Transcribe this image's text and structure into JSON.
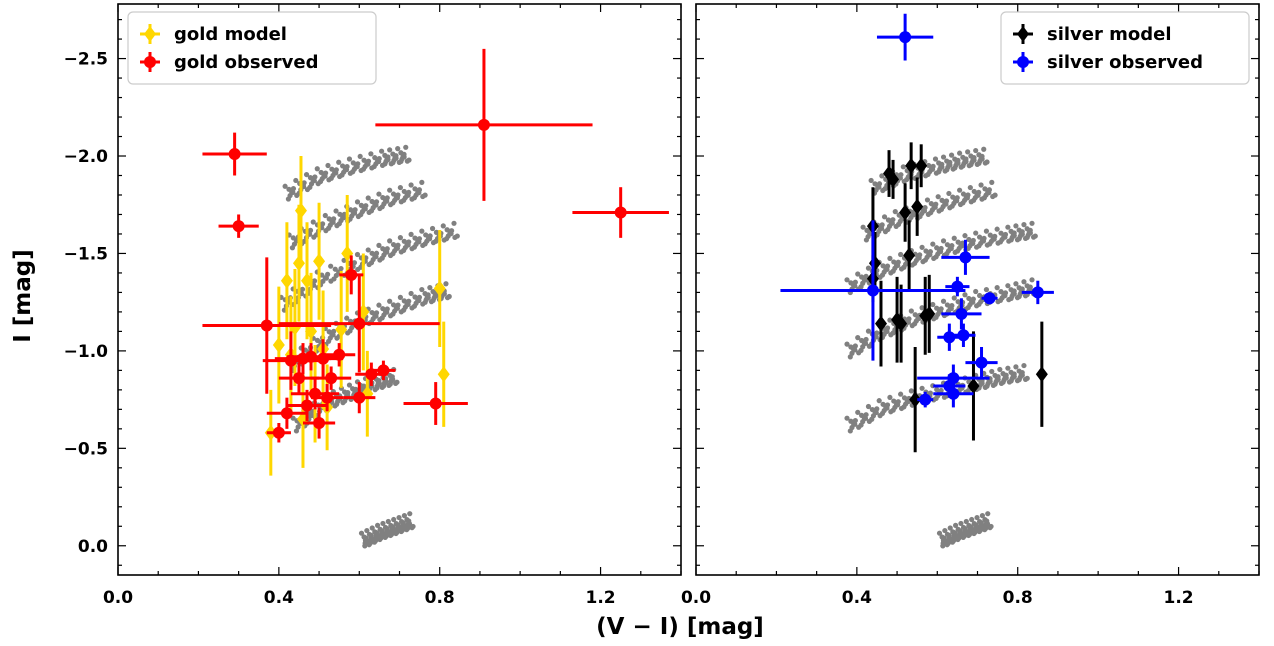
{
  "figure": {
    "xlabel": "(V − I) [mag]",
    "ylabel": "I [mag]"
  },
  "chart_data": [
    {
      "type": "scatter",
      "panel": "left",
      "xlim": [
        0.0,
        1.4
      ],
      "ylim": [
        0.15,
        -2.78
      ],
      "x_axis_inverted": false,
      "y_axis_inverted": true,
      "x_ticks": [
        0.0,
        0.4,
        0.8,
        1.2
      ],
      "x_tick_labels": [
        "0.0",
        "0.4",
        "0.8",
        "1.2"
      ],
      "y_ticks": [
        0.0,
        -0.5,
        -1.0,
        -1.5,
        -2.0,
        -2.5
      ],
      "y_tick_labels": [
        "0.0",
        "−0.5",
        "−1.0",
        "−1.5",
        "−2.0",
        "−2.5"
      ],
      "grid": false,
      "legend_position": "top-left",
      "background_bands": {
        "color": "#808080",
        "bands": [
          {
            "x": [
              0.44,
              0.52,
              0.58,
              0.64,
              0.69
            ],
            "y": [
              -0.62,
              -0.74,
              -0.79,
              -0.84,
              -0.87
            ]
          },
          {
            "x": [
              0.43,
              0.52,
              0.6,
              0.68,
              0.76,
              0.82
            ],
            "y": [
              -0.93,
              -1.08,
              -1.16,
              -1.22,
              -1.28,
              -1.31
            ]
          },
          {
            "x": [
              0.41,
              0.5,
              0.6,
              0.68,
              0.76,
              0.84
            ],
            "y": [
              -1.24,
              -1.37,
              -1.46,
              -1.53,
              -1.58,
              -1.62
            ]
          },
          {
            "x": [
              0.43,
              0.52,
              0.6,
              0.68,
              0.76
            ],
            "y": [
              -1.56,
              -1.66,
              -1.73,
              -1.79,
              -1.83
            ]
          },
          {
            "x": [
              0.42,
              0.5,
              0.58,
              0.66,
              0.72
            ],
            "y": [
              -1.81,
              -1.9,
              -1.95,
              -1.99,
              -2.01
            ]
          },
          {
            "x": [
              0.61,
              0.65,
              0.69,
              0.73
            ],
            "y": [
              -0.03,
              -0.07,
              -0.1,
              -0.13
            ]
          }
        ]
      },
      "series": [
        {
          "name": "gold model",
          "color": "#FFD700",
          "marker": "diamond",
          "points": [
            {
              "x": 0.38,
              "y": -0.58,
              "xerr": 0.0,
              "yerr": 0.22
            },
            {
              "x": 0.4,
              "y": -1.03,
              "xerr": 0.01,
              "yerr": 0.3
            },
            {
              "x": 0.42,
              "y": -1.36,
              "xerr": 0.01,
              "yerr": 0.3
            },
            {
              "x": 0.43,
              "y": -0.98,
              "xerr": 0.01,
              "yerr": 0.3
            },
            {
              "x": 0.44,
              "y": -1.12,
              "xerr": 0.01,
              "yerr": 0.3
            },
            {
              "x": 0.45,
              "y": -1.45,
              "xerr": 0.01,
              "yerr": 0.3
            },
            {
              "x": 0.455,
              "y": -1.72,
              "xerr": 0.01,
              "yerr": 0.28
            },
            {
              "x": 0.46,
              "y": -0.65,
              "xerr": 0.01,
              "yerr": 0.25
            },
            {
              "x": 0.47,
              "y": -1.36,
              "xerr": 0.01,
              "yerr": 0.3
            },
            {
              "x": 0.48,
              "y": -1.1,
              "xerr": 0.01,
              "yerr": 0.3
            },
            {
              "x": 0.49,
              "y": -0.78,
              "xerr": 0.01,
              "yerr": 0.25
            },
            {
              "x": 0.5,
              "y": -1.46,
              "xerr": 0.01,
              "yerr": 0.3
            },
            {
              "x": 0.51,
              "y": -1.01,
              "xerr": 0.01,
              "yerr": 0.3
            },
            {
              "x": 0.52,
              "y": -0.71,
              "xerr": 0.01,
              "yerr": 0.22
            },
            {
              "x": 0.555,
              "y": -1.11,
              "xerr": 0.01,
              "yerr": 0.3
            },
            {
              "x": 0.57,
              "y": -1.5,
              "xerr": 0.01,
              "yerr": 0.3
            },
            {
              "x": 0.61,
              "y": -1.2,
              "xerr": 0.01,
              "yerr": 0.3
            },
            {
              "x": 0.62,
              "y": -0.78,
              "xerr": 0.01,
              "yerr": 0.22
            },
            {
              "x": 0.8,
              "y": -1.32,
              "xerr": 0.01,
              "yerr": 0.3
            },
            {
              "x": 0.81,
              "y": -0.88,
              "xerr": 0.01,
              "yerr": 0.27
            }
          ]
        },
        {
          "name": "gold observed",
          "color": "#FF0000",
          "marker": "circle",
          "points": [
            {
              "x": 0.29,
              "y": -2.01,
              "xerr": 0.08,
              "yerr": 0.11
            },
            {
              "x": 0.3,
              "y": -1.64,
              "xerr": 0.05,
              "yerr": 0.06
            },
            {
              "x": 0.37,
              "y": -1.13,
              "xerr": 0.16,
              "yerr": 0.35
            },
            {
              "x": 0.4,
              "y": -0.58,
              "xerr": 0.03,
              "yerr": 0.05
            },
            {
              "x": 0.42,
              "y": -0.68,
              "xerr": 0.05,
              "yerr": 0.08
            },
            {
              "x": 0.43,
              "y": -0.95,
              "xerr": 0.07,
              "yerr": 0.15
            },
            {
              "x": 0.45,
              "y": -0.86,
              "xerr": 0.05,
              "yerr": 0.08
            },
            {
              "x": 0.46,
              "y": -0.96,
              "xerr": 0.07,
              "yerr": 0.08
            },
            {
              "x": 0.47,
              "y": -0.72,
              "xerr": 0.05,
              "yerr": 0.08
            },
            {
              "x": 0.48,
              "y": -0.97,
              "xerr": 0.06,
              "yerr": 0.07
            },
            {
              "x": 0.49,
              "y": -0.78,
              "xerr": 0.06,
              "yerr": 0.08
            },
            {
              "x": 0.5,
              "y": -0.63,
              "xerr": 0.04,
              "yerr": 0.08
            },
            {
              "x": 0.51,
              "y": -0.96,
              "xerr": 0.05,
              "yerr": 0.1
            },
            {
              "x": 0.52,
              "y": -0.76,
              "xerr": 0.04,
              "yerr": 0.07
            },
            {
              "x": 0.53,
              "y": -0.86,
              "xerr": 0.05,
              "yerr": 0.06
            },
            {
              "x": 0.55,
              "y": -0.98,
              "xerr": 0.04,
              "yerr": 0.06
            },
            {
              "x": 0.58,
              "y": -1.39,
              "xerr": 0.03,
              "yerr": 0.1
            },
            {
              "x": 0.6,
              "y": -1.14,
              "xerr": 0.2,
              "yerr": 0.25
            },
            {
              "x": 0.6,
              "y": -0.76,
              "xerr": 0.04,
              "yerr": 0.08
            },
            {
              "x": 0.63,
              "y": -0.88,
              "xerr": 0.04,
              "yerr": 0.06
            },
            {
              "x": 0.66,
              "y": -0.9,
              "xerr": 0.03,
              "yerr": 0.05
            },
            {
              "x": 0.79,
              "y": -0.73,
              "xerr": 0.08,
              "yerr": 0.11
            },
            {
              "x": 0.91,
              "y": -2.16,
              "xerr": 0.27,
              "yerr": 0.39
            },
            {
              "x": 1.25,
              "y": -1.71,
              "xerr": 0.12,
              "yerr": 0.13
            }
          ]
        }
      ]
    },
    {
      "type": "scatter",
      "panel": "right",
      "xlim": [
        0.0,
        1.4
      ],
      "ylim": [
        0.15,
        -2.78
      ],
      "x_axis_inverted": false,
      "y_axis_inverted": true,
      "x_ticks": [
        0.0,
        0.4,
        0.8,
        1.2
      ],
      "x_tick_labels": [
        "0.0",
        "0.4",
        "0.8",
        "1.2"
      ],
      "grid": false,
      "legend_position": "top-right",
      "background_bands": {
        "color": "#808080",
        "bands": [
          {
            "x": [
              0.38,
              0.46,
              0.54,
              0.62,
              0.7,
              0.76,
              0.82
            ],
            "y": [
              -0.62,
              -0.71,
              -0.76,
              -0.8,
              -0.84,
              -0.87,
              -0.89
            ]
          },
          {
            "x": [
              0.38,
              0.46,
              0.54,
              0.62,
              0.7,
              0.78,
              0.84
            ],
            "y": [
              -1.0,
              -1.1,
              -1.17,
              -1.22,
              -1.27,
              -1.3,
              -1.33
            ]
          },
          {
            "x": [
              0.38,
              0.46,
              0.54,
              0.62,
              0.7,
              0.78,
              0.84
            ],
            "y": [
              -1.33,
              -1.42,
              -1.48,
              -1.53,
              -1.57,
              -1.6,
              -1.62
            ]
          },
          {
            "x": [
              0.42,
              0.5,
              0.58,
              0.66,
              0.74
            ],
            "y": [
              -1.6,
              -1.68,
              -1.74,
              -1.79,
              -1.83
            ]
          },
          {
            "x": [
              0.44,
              0.52,
              0.6,
              0.66,
              0.72
            ],
            "y": [
              -1.84,
              -1.91,
              -1.95,
              -1.98,
              -2.0
            ]
          },
          {
            "x": [
              0.61,
              0.65,
              0.69,
              0.73
            ],
            "y": [
              -0.03,
              -0.07,
              -0.1,
              -0.13
            ]
          }
        ]
      },
      "series": [
        {
          "name": "silver model",
          "color": "#000000",
          "marker": "diamond",
          "points": [
            {
              "x": 0.44,
              "y": -1.64,
              "xerr": 0.0,
              "yerr": 0.2
            },
            {
              "x": 0.445,
              "y": -1.45,
              "xerr": 0.0,
              "yerr": 0.16
            },
            {
              "x": 0.44,
              "y": -1.37,
              "xerr": 0.0,
              "yerr": 0.12
            },
            {
              "x": 0.46,
              "y": -1.14,
              "xerr": 0.01,
              "yerr": 0.22
            },
            {
              "x": 0.48,
              "y": -1.91,
              "xerr": 0.01,
              "yerr": 0.12
            },
            {
              "x": 0.49,
              "y": -1.88,
              "xerr": 0.01,
              "yerr": 0.1
            },
            {
              "x": 0.5,
              "y": -1.16,
              "xerr": 0.01,
              "yerr": 0.22
            },
            {
              "x": 0.51,
              "y": -1.14,
              "xerr": 0.01,
              "yerr": 0.2
            },
            {
              "x": 0.52,
              "y": -1.71,
              "xerr": 0.01,
              "yerr": 0.15
            },
            {
              "x": 0.53,
              "y": -1.49,
              "xerr": 0.01,
              "yerr": 0.18
            },
            {
              "x": 0.535,
              "y": -1.95,
              "xerr": 0.01,
              "yerr": 0.12
            },
            {
              "x": 0.545,
              "y": -0.75,
              "xerr": 0.01,
              "yerr": 0.27
            },
            {
              "x": 0.55,
              "y": -1.74,
              "xerr": 0.01,
              "yerr": 0.15
            },
            {
              "x": 0.56,
              "y": -1.95,
              "xerr": 0.01,
              "yerr": 0.11
            },
            {
              "x": 0.57,
              "y": -1.18,
              "xerr": 0.01,
              "yerr": 0.2
            },
            {
              "x": 0.58,
              "y": -1.19,
              "xerr": 0.01,
              "yerr": 0.2
            },
            {
              "x": 0.69,
              "y": -0.82,
              "xerr": 0.01,
              "yerr": 0.28
            },
            {
              "x": 0.86,
              "y": -0.88,
              "xerr": 0.01,
              "yerr": 0.27
            }
          ]
        },
        {
          "name": "silver observed",
          "color": "#0000FF",
          "marker": "circle",
          "points": [
            {
              "x": 0.44,
              "y": -1.31,
              "xerr": 0.23,
              "yerr": 0.36
            },
            {
              "x": 0.52,
              "y": -2.61,
              "xerr": 0.07,
              "yerr": 0.12
            },
            {
              "x": 0.57,
              "y": -0.75,
              "xerr": 0.02,
              "yerr": 0.04
            },
            {
              "x": 0.63,
              "y": -1.07,
              "xerr": 0.03,
              "yerr": 0.07
            },
            {
              "x": 0.63,
              "y": -0.82,
              "xerr": 0.04,
              "yerr": 0.06
            },
            {
              "x": 0.64,
              "y": -0.78,
              "xerr": 0.05,
              "yerr": 0.07
            },
            {
              "x": 0.64,
              "y": -0.86,
              "xerr": 0.09,
              "yerr": 0.07
            },
            {
              "x": 0.65,
              "y": -1.33,
              "xerr": 0.03,
              "yerr": 0.05
            },
            {
              "x": 0.66,
              "y": -1.19,
              "xerr": 0.05,
              "yerr": 0.08
            },
            {
              "x": 0.665,
              "y": -1.08,
              "xerr": 0.03,
              "yerr": 0.06
            },
            {
              "x": 0.67,
              "y": -1.48,
              "xerr": 0.06,
              "yerr": 0.09
            },
            {
              "x": 0.71,
              "y": -0.94,
              "xerr": 0.04,
              "yerr": 0.08
            },
            {
              "x": 0.73,
              "y": -1.27,
              "xerr": 0.02,
              "yerr": 0.03
            },
            {
              "x": 0.85,
              "y": -1.3,
              "xerr": 0.04,
              "yerr": 0.06
            }
          ]
        }
      ]
    }
  ]
}
